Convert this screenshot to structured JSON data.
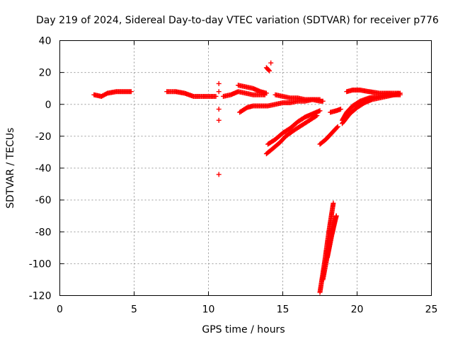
{
  "chart_data": {
    "type": "scatter",
    "title": "Day 219 of 2024, Sidereal Day-to-day VTEC variation (SDTVAR) for receiver p776",
    "xlabel": "GPS time / hours",
    "ylabel": "SDTVAR / TECUs",
    "xlim": [
      0,
      25
    ],
    "ylim": [
      -120,
      40
    ],
    "xticks": [
      0,
      5,
      10,
      15,
      20,
      25
    ],
    "yticks": [
      -120,
      -100,
      -80,
      -60,
      -40,
      -20,
      0,
      20,
      40
    ],
    "grid": true,
    "legend": "none",
    "marker": "+",
    "series_color": "#ff0000",
    "segments": [
      {
        "x": [
          2.3,
          2.8,
          3.2,
          3.8,
          4.3,
          4.8
        ],
        "y": [
          6,
          5,
          7,
          8,
          8,
          8
        ]
      },
      {
        "x": [
          7.2,
          7.8,
          8.4,
          9.0,
          9.6,
          10.2,
          10.5
        ],
        "y": [
          8,
          8,
          7,
          5,
          5,
          5,
          5
        ]
      },
      {
        "x": [
          11.0,
          11.5,
          12.0,
          12.5,
          13.0,
          13.5,
          13.8
        ],
        "y": [
          5,
          6,
          8,
          7,
          6,
          6,
          6
        ]
      },
      {
        "x": [
          12.0,
          12.5,
          13.0,
          13.5,
          13.9
        ],
        "y": [
          12,
          11,
          10,
          8,
          7
        ]
      },
      {
        "x": [
          12.1,
          12.6,
          13.0,
          13.5,
          14.0,
          14.5,
          15.0,
          15.5,
          16.0,
          16.5,
          17.0,
          17.5
        ],
        "y": [
          -5,
          -2,
          -1,
          -1,
          -1,
          0,
          1,
          1,
          2,
          2,
          3,
          3
        ]
      },
      {
        "x": [
          14.5,
          15.0,
          15.5,
          16.0,
          16.5,
          17.0,
          17.5,
          17.7
        ],
        "y": [
          6,
          5,
          4,
          4,
          3,
          3,
          2,
          2
        ]
      },
      {
        "x": [
          14.0,
          14.5,
          15.0,
          15.5,
          16.0,
          16.5,
          17.0,
          17.5
        ],
        "y": [
          -25,
          -22,
          -18,
          -15,
          -11,
          -8,
          -6,
          -4
        ]
      },
      {
        "x": [
          13.9,
          14.3,
          14.8,
          15.2,
          15.8,
          16.3,
          16.8,
          17.3
        ],
        "y": [
          -31,
          -28,
          -24,
          -20,
          -16,
          -13,
          -10,
          -7
        ]
      },
      {
        "x": [
          17.5,
          17.9,
          18.3,
          18.7
        ],
        "y": [
          -25,
          -22,
          -18,
          -14
        ]
      },
      {
        "x": [
          18.2,
          18.6,
          18.9
        ],
        "y": [
          -5,
          -4,
          -3
        ]
      },
      {
        "x": [
          19.0,
          19.3,
          19.7,
          20.2,
          20.8,
          21.5,
          22.2,
          22.9
        ],
        "y": [
          -10,
          -5,
          -1,
          2,
          4,
          5,
          6,
          6
        ]
      },
      {
        "x": [
          19.0,
          19.5,
          20.0,
          20.5,
          21.0,
          21.5,
          22.0,
          22.5,
          22.9
        ],
        "y": [
          -12,
          -6,
          -2,
          1,
          3,
          4,
          5,
          6,
          7
        ]
      },
      {
        "x": [
          19.3,
          19.7,
          20.2,
          20.8,
          21.5,
          22.2,
          22.8
        ],
        "y": [
          8,
          9,
          9,
          8,
          7,
          7,
          7
        ]
      },
      {
        "x": [
          17.5,
          17.8,
          18.1,
          18.4
        ],
        "y": [
          -118,
          -100,
          -80,
          -62
        ]
      },
      {
        "x": [
          17.7,
          18.0,
          18.3,
          18.6
        ],
        "y": [
          -110,
          -95,
          -80,
          -70
        ]
      },
      {
        "x": [
          18.0,
          18.3,
          18.6
        ],
        "y": [
          -96,
          -82,
          -70
        ]
      },
      {
        "x": [
          13.9,
          14.1
        ],
        "y": [
          23,
          21
        ]
      }
    ],
    "points": [
      {
        "x": 10.7,
        "y": 13
      },
      {
        "x": 10.7,
        "y": 8
      },
      {
        "x": 10.7,
        "y": -3
      },
      {
        "x": 10.7,
        "y": -10
      },
      {
        "x": 10.7,
        "y": -44
      },
      {
        "x": 14.2,
        "y": 26
      }
    ]
  }
}
